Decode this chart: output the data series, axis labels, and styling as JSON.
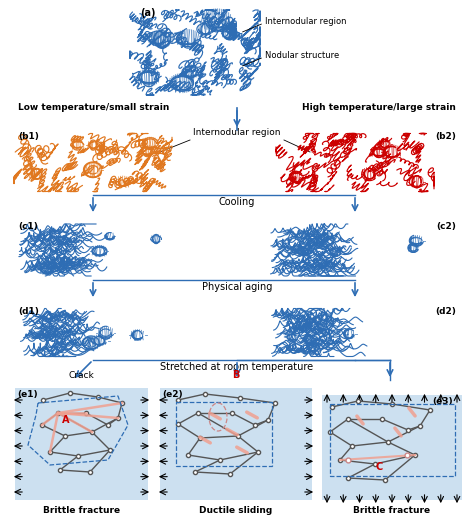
{
  "bg_color": "#ffffff",
  "blue": "#2e6db4",
  "orange": "#e07820",
  "red": "#cc0000",
  "light_blue_box": "#cce0f0",
  "gray_node": "#888888",
  "pink_crack": "#f0a090",
  "temp_labels": [
    "Low temperature/small strain",
    "High temperature/large strain"
  ],
  "label_a": "(a)",
  "label_b1": "(b1)",
  "label_b2": "(b2)",
  "label_c1": "(c1)",
  "label_c2": "(c2)",
  "label_d1": "(d1)",
  "label_d2": "(d2)",
  "label_e1": "(e1)",
  "label_e2": "(e2)",
  "label_e3": "(e3)",
  "txt_internodular": "Internodular region",
  "txt_nodular": "Nodular structure",
  "txt_cooling": "Cooling",
  "txt_physical_aging": "Physical aging",
  "txt_stretched": "Stretched at room temperature",
  "txt_crack": "Crack",
  "txt_brittle": "Brittle fracture",
  "txt_ductile": "Ductile sliding",
  "txt_A": "A",
  "txt_B": "B",
  "txt_C": "C"
}
